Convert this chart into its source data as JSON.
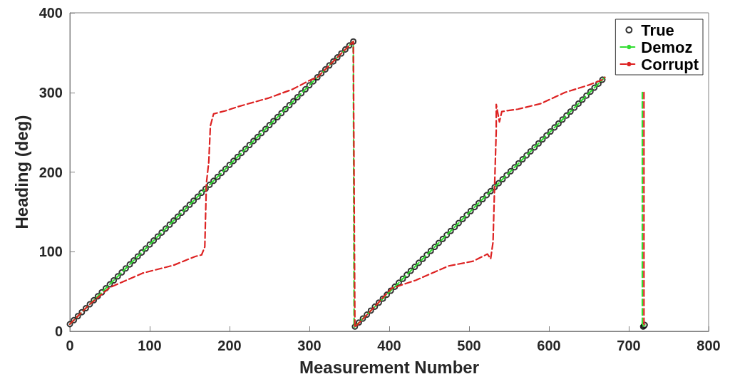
{
  "chart_data": {
    "type": "line",
    "xlabel": "Measurement Number",
    "ylabel": "Heading (deg)",
    "xlim": [
      0,
      800
    ],
    "ylim": [
      0,
      400
    ],
    "xticks": [
      0,
      100,
      200,
      300,
      400,
      500,
      600,
      700,
      800
    ],
    "yticks": [
      0,
      100,
      200,
      300,
      400
    ],
    "grid": false,
    "legend": "top right",
    "series": [
      {
        "name": "True",
        "type": "scatter",
        "marker": "circle",
        "color": "#000000",
        "x": [
          0,
          5,
          10,
          15,
          20,
          25,
          30,
          35,
          40,
          45,
          50,
          55,
          60,
          65,
          70,
          75,
          80,
          85,
          90,
          95,
          100,
          105,
          110,
          115,
          120,
          125,
          130,
          135,
          140,
          145,
          150,
          155,
          160,
          165,
          170,
          175,
          180,
          185,
          190,
          195,
          200,
          205,
          210,
          215,
          220,
          225,
          230,
          235,
          240,
          245,
          250,
          255,
          260,
          265,
          270,
          275,
          280,
          285,
          290,
          295,
          300,
          305,
          310,
          315,
          320,
          325,
          330,
          335,
          340,
          345,
          350,
          355,
          357,
          362,
          367,
          372,
          377,
          382,
          387,
          392,
          397,
          402,
          407,
          412,
          417,
          422,
          427,
          432,
          437,
          442,
          447,
          452,
          457,
          462,
          467,
          472,
          477,
          482,
          487,
          492,
          497,
          502,
          507,
          512,
          517,
          522,
          527,
          532,
          537,
          542,
          547,
          552,
          557,
          562,
          567,
          572,
          577,
          582,
          587,
          592,
          597,
          602,
          607,
          612,
          617,
          622,
          627,
          632,
          637,
          642,
          647,
          652,
          657,
          662,
          667,
          718,
          719,
          720
        ],
        "values": [
          9,
          14,
          19,
          24,
          29,
          34,
          39,
          44,
          49,
          54,
          59,
          64,
          69,
          74,
          79,
          84,
          89,
          94,
          99,
          104,
          109,
          114,
          119,
          124,
          129,
          134,
          139,
          144,
          149,
          154,
          159,
          164,
          169,
          174,
          179,
          184,
          189,
          194,
          199,
          204,
          209,
          214,
          219,
          224,
          229,
          234,
          239,
          244,
          249,
          254,
          259,
          264,
          269,
          274,
          279,
          284,
          289,
          294,
          299,
          304,
          309,
          314,
          319,
          324,
          329,
          334,
          339,
          344,
          349,
          354,
          359,
          364,
          6,
          11,
          16,
          21,
          26,
          31,
          36,
          41,
          46,
          51,
          56,
          61,
          66,
          71,
          76,
          81,
          86,
          91,
          96,
          101,
          106,
          111,
          116,
          121,
          126,
          131,
          136,
          141,
          146,
          151,
          156,
          161,
          166,
          171,
          176,
          181,
          186,
          191,
          196,
          201,
          206,
          211,
          216,
          221,
          226,
          231,
          236,
          241,
          246,
          251,
          256,
          261,
          266,
          271,
          276,
          281,
          286,
          291,
          296,
          301,
          306,
          311,
          316,
          6,
          7,
          8
        ]
      },
      {
        "name": "Demoz",
        "marker": "none",
        "line_style": "dashed",
        "color": "#33dd33",
        "x": [
          0,
          50,
          100,
          150,
          200,
          250,
          300,
          355,
          356,
          400,
          450,
          500,
          550,
          600,
          650,
          670,
          680,
          717,
          717,
          720
        ],
        "values": [
          9,
          59,
          109,
          159,
          209,
          259,
          309,
          364,
          5,
          49,
          99,
          149,
          199,
          249,
          299,
          319,
          null,
          300,
          6,
          8
        ]
      },
      {
        "name": "Corrupt",
        "marker": "none",
        "line_style": "dashed",
        "color": "#dd2222",
        "x": [
          0,
          25,
          50,
          91,
          130,
          157,
          165,
          169,
          171,
          174,
          176,
          180,
          195,
          210,
          249,
          279,
          300,
          310,
          355,
          357,
          380,
          403,
          433,
          474,
          505,
          523,
          527,
          530,
          532,
          534,
          534,
          538,
          541,
          561,
          590,
          620,
          649,
          667,
          670,
          690,
          719,
          719,
          720
        ],
        "values": [
          9,
          34,
          55,
          73,
          83,
          94,
          96,
          106,
          186,
          213,
          258,
          273,
          277,
          282,
          293,
          304,
          315,
          319,
          364,
          5,
          29,
          54,
          64,
          82,
          88,
          97,
          91,
          112,
          184,
          252,
          285,
          263,
          276,
          279,
          286,
          300,
          309,
          316,
          319,
          null,
          300,
          7,
          8
        ]
      }
    ]
  }
}
